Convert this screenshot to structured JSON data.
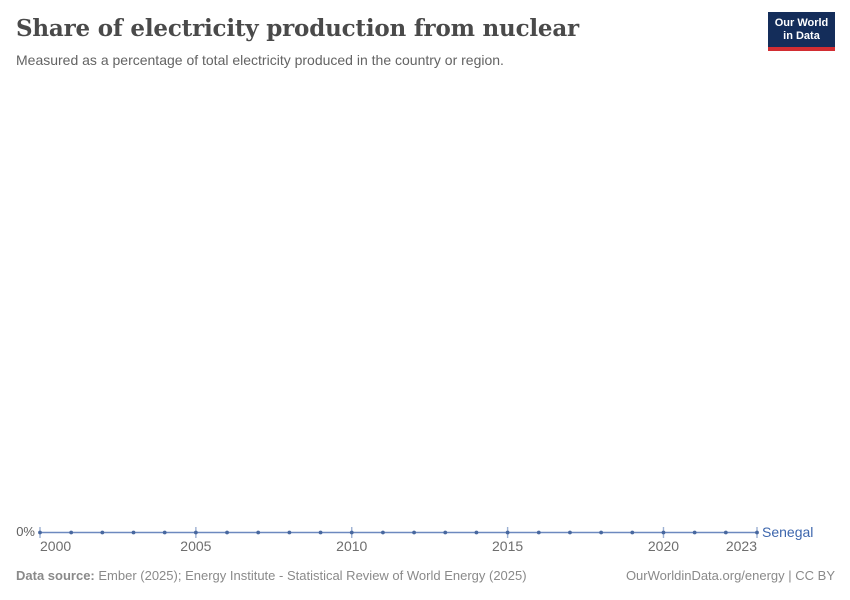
{
  "header": {
    "title": "Share of electricity production from nuclear",
    "subtitle": "Measured as a percentage of total electricity produced in the country or region.",
    "logo": {
      "line1": "Our World",
      "line2": "in Data"
    }
  },
  "chart_data": {
    "type": "line",
    "title": "Share of electricity production from nuclear",
    "subtitle": "Measured as a percentage of total electricity produced in the country or region.",
    "x": [
      2000,
      2001,
      2002,
      2003,
      2004,
      2005,
      2006,
      2007,
      2008,
      2009,
      2010,
      2011,
      2012,
      2013,
      2014,
      2015,
      2016,
      2017,
      2018,
      2019,
      2020,
      2021,
      2022,
      2023
    ],
    "series": [
      {
        "name": "Senegal",
        "values": [
          0,
          0,
          0,
          0,
          0,
          0,
          0,
          0,
          0,
          0,
          0,
          0,
          0,
          0,
          0,
          0,
          0,
          0,
          0,
          0,
          0,
          0,
          0,
          0
        ],
        "unit": "%"
      }
    ],
    "x_tick_years": [
      2000,
      2005,
      2010,
      2015,
      2020,
      2023
    ],
    "y_tick_labels": [
      "0%"
    ],
    "xlabel": "",
    "ylabel": "",
    "ylim": [
      0,
      0
    ],
    "grid": false,
    "legend_position": "right-of-line-end",
    "marker": "dot-every-year"
  },
  "colors": {
    "line": "#6d89bf",
    "dot": "#48689f",
    "tick": "#9db1d3",
    "series_label": "#3d66ad",
    "logo_bg": "#142d5a",
    "logo_bar": "#d22d32"
  },
  "footer": {
    "datasource_label": "Data source:",
    "datasource_text": " Ember (2025); Energy Institute - Statistical Review of World Energy (2025)",
    "license_text": "OurWorldinData.org/energy | CC BY"
  }
}
